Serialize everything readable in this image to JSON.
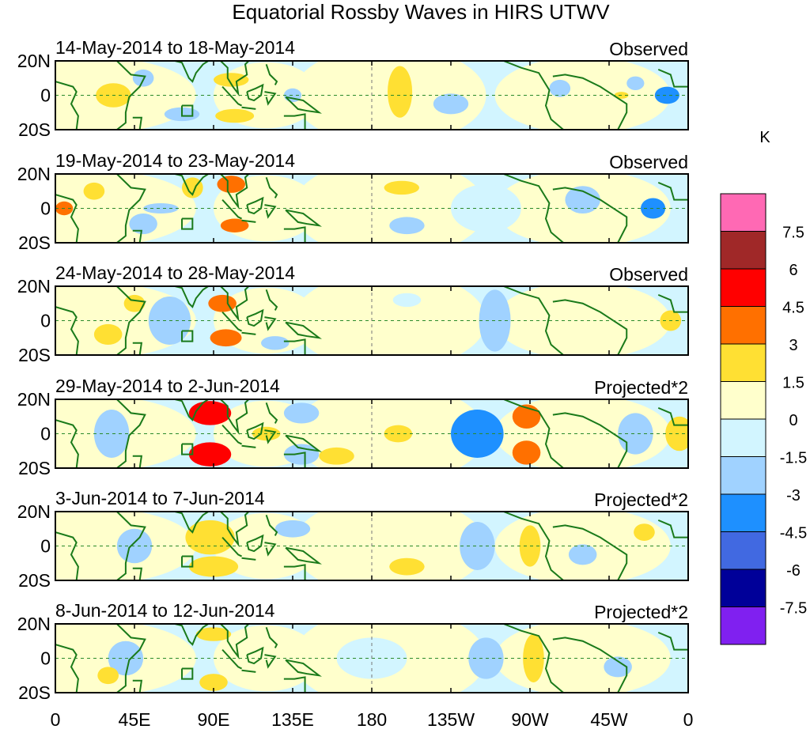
{
  "chart_data": {
    "type": "heatmap",
    "title": "Equatorial Rossby Waves in HIRS UTWV",
    "units": "K",
    "x_ticks": [
      "0",
      "45E",
      "90E",
      "135E",
      "180",
      "135W",
      "90W",
      "45W",
      "0"
    ],
    "y_ticks": [
      "20N",
      "0",
      "20S"
    ],
    "lon_range": [
      0,
      360
    ],
    "lat_range": [
      -20,
      20
    ],
    "colorbar": {
      "levels": [
        "-7.5",
        "-6",
        "-4.5",
        "-3",
        "-1.5",
        "0",
        "1.5",
        "3",
        "4.5",
        "6",
        "7.5"
      ],
      "colors": [
        "#8020F0",
        "#000099",
        "#4169E1",
        "#1E90FF",
        "#A0D2FF",
        "#D2F5FF",
        "#FFFFCC",
        "#FFE033",
        "#FF7000",
        "#FF0000",
        "#A02828",
        "#FF69B4"
      ]
    },
    "panels": [
      {
        "period": "14-May-2014 to 18-May-2014",
        "label": "Observed",
        "anomalies": [
          [
            33,
            0,
            10,
            7,
            2
          ],
          [
            100,
            9,
            10,
            4,
            2
          ],
          [
            102,
            -12,
            11,
            4,
            2
          ],
          [
            196,
            2,
            7,
            15,
            2
          ],
          [
            72,
            -11,
            10,
            4,
            -2
          ],
          [
            50,
            10,
            6,
            5,
            -2
          ],
          [
            135,
            0,
            5,
            4,
            -2
          ],
          [
            225,
            -5,
            10,
            6,
            -2
          ],
          [
            287,
            4,
            6,
            5,
            -2
          ],
          [
            348,
            0,
            7,
            5,
            -3.5
          ],
          [
            322,
            0,
            4,
            2,
            2
          ],
          [
            330,
            7,
            5,
            4,
            -2
          ]
        ]
      },
      {
        "period": "19-May-2014 to 23-May-2014",
        "label": "Observed",
        "anomalies": [
          [
            5,
            0,
            5,
            4,
            3.5
          ],
          [
            22,
            10,
            6,
            5,
            2
          ],
          [
            50,
            -9,
            8,
            6,
            -2
          ],
          [
            78,
            12,
            6,
            6,
            2
          ],
          [
            100,
            14,
            8,
            5,
            3
          ],
          [
            102,
            -10,
            8,
            4,
            3
          ],
          [
            197,
            12,
            10,
            4,
            2
          ],
          [
            200,
            -10,
            10,
            5,
            -2
          ],
          [
            245,
            0,
            20,
            14,
            -1
          ],
          [
            300,
            5,
            10,
            8,
            -2
          ],
          [
            340,
            0,
            7,
            6,
            -3.5
          ],
          [
            60,
            0,
            10,
            3,
            -2
          ]
        ]
      },
      {
        "period": "24-May-2014 to 28-May-2014",
        "label": "Observed",
        "anomalies": [
          [
            95,
            10,
            8,
            5,
            3.5
          ],
          [
            97,
            -10,
            9,
            5,
            3.5
          ],
          [
            65,
            0,
            12,
            14,
            -2
          ],
          [
            250,
            0,
            9,
            18,
            -2
          ],
          [
            30,
            -8,
            8,
            6,
            2
          ],
          [
            45,
            10,
            6,
            5,
            2
          ],
          [
            200,
            12,
            8,
            4,
            -1
          ],
          [
            350,
            0,
            6,
            6,
            2
          ],
          [
            125,
            -13,
            8,
            4,
            -2
          ]
        ]
      },
      {
        "period": "29-May-2014 to 2-Jun-2014",
        "label": "Projected*2",
        "anomalies": [
          [
            88,
            12,
            12,
            7,
            4.5
          ],
          [
            88,
            -12,
            12,
            7,
            4.5
          ],
          [
            32,
            0,
            10,
            14,
            -3
          ],
          [
            140,
            12,
            10,
            6,
            -2
          ],
          [
            140,
            -12,
            10,
            6,
            -2
          ],
          [
            160,
            -13,
            10,
            5,
            2
          ],
          [
            195,
            0,
            8,
            5,
            2
          ],
          [
            240,
            0,
            15,
            14,
            -3.5
          ],
          [
            268,
            10,
            8,
            7,
            3.5
          ],
          [
            268,
            -11,
            8,
            7,
            3.5
          ],
          [
            330,
            0,
            10,
            12,
            -2
          ],
          [
            355,
            0,
            8,
            10,
            2
          ],
          [
            120,
            0,
            8,
            4,
            2
          ]
        ]
      },
      {
        "period": "3-Jun-2014 to 7-Jun-2014",
        "label": "Projected*2",
        "anomalies": [
          [
            88,
            5,
            14,
            10,
            2
          ],
          [
            90,
            -12,
            14,
            6,
            2
          ],
          [
            45,
            0,
            10,
            10,
            -2
          ],
          [
            135,
            10,
            10,
            5,
            -2
          ],
          [
            200,
            -12,
            10,
            5,
            2
          ],
          [
            240,
            0,
            10,
            14,
            -2
          ],
          [
            270,
            0,
            6,
            12,
            2
          ],
          [
            300,
            -5,
            8,
            6,
            -2
          ],
          [
            335,
            8,
            6,
            5,
            2
          ]
        ]
      },
      {
        "period": "8-Jun-2014 to 12-Jun-2014",
        "label": "Projected*2",
        "anomalies": [
          [
            90,
            -14,
            8,
            5,
            2
          ],
          [
            90,
            14,
            10,
            4,
            2
          ],
          [
            40,
            0,
            10,
            10,
            -2
          ],
          [
            272,
            0,
            6,
            14,
            2
          ],
          [
            245,
            0,
            10,
            12,
            -2
          ],
          [
            320,
            -5,
            8,
            6,
            -2
          ],
          [
            180,
            0,
            20,
            12,
            -1
          ],
          [
            30,
            -10,
            6,
            5,
            2
          ]
        ]
      }
    ]
  }
}
